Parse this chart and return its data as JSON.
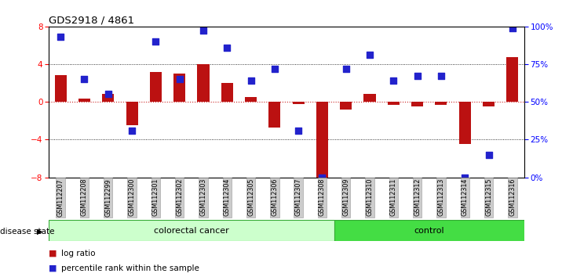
{
  "title": "GDS2918 / 4861",
  "samples": [
    "GSM112207",
    "GSM112208",
    "GSM112299",
    "GSM112300",
    "GSM112301",
    "GSM112302",
    "GSM112303",
    "GSM112304",
    "GSM112305",
    "GSM112306",
    "GSM112307",
    "GSM112308",
    "GSM112309",
    "GSM112310",
    "GSM112311",
    "GSM112312",
    "GSM112313",
    "GSM112314",
    "GSM112315",
    "GSM112316"
  ],
  "log_ratio": [
    2.8,
    0.3,
    0.8,
    -2.5,
    3.2,
    3.0,
    4.0,
    2.0,
    0.5,
    -2.7,
    -0.2,
    -8.1,
    -0.8,
    0.8,
    -0.3,
    -0.5,
    -0.3,
    -4.5,
    -0.5,
    4.7
  ],
  "percentile_pct": [
    93,
    65,
    55,
    31,
    90,
    65,
    97,
    86,
    64,
    72,
    31,
    0,
    72,
    81,
    64,
    67,
    67,
    0,
    15,
    99
  ],
  "n_colorectal": 12,
  "n_control": 8,
  "ylim_left": [
    -8,
    8
  ],
  "yticks_left": [
    -8,
    -4,
    0,
    4,
    8
  ],
  "ylim_right": [
    0,
    100
  ],
  "yticks_right": [
    0,
    25,
    50,
    75,
    100
  ],
  "bar_color": "#bb1111",
  "dot_color": "#2222cc",
  "colorectal_bg": "#ccffcc",
  "control_bg": "#44dd44",
  "label_bg": "#cccccc",
  "zero_line_color": "#cc2222",
  "legend_bar_label": "log ratio",
  "legend_dot_label": "percentile rank within the sample",
  "disease_state_label": "disease state",
  "colorectal_label": "colorectal cancer",
  "control_label": "control",
  "figsize": [
    7.3,
    3.54
  ],
  "dpi": 100
}
